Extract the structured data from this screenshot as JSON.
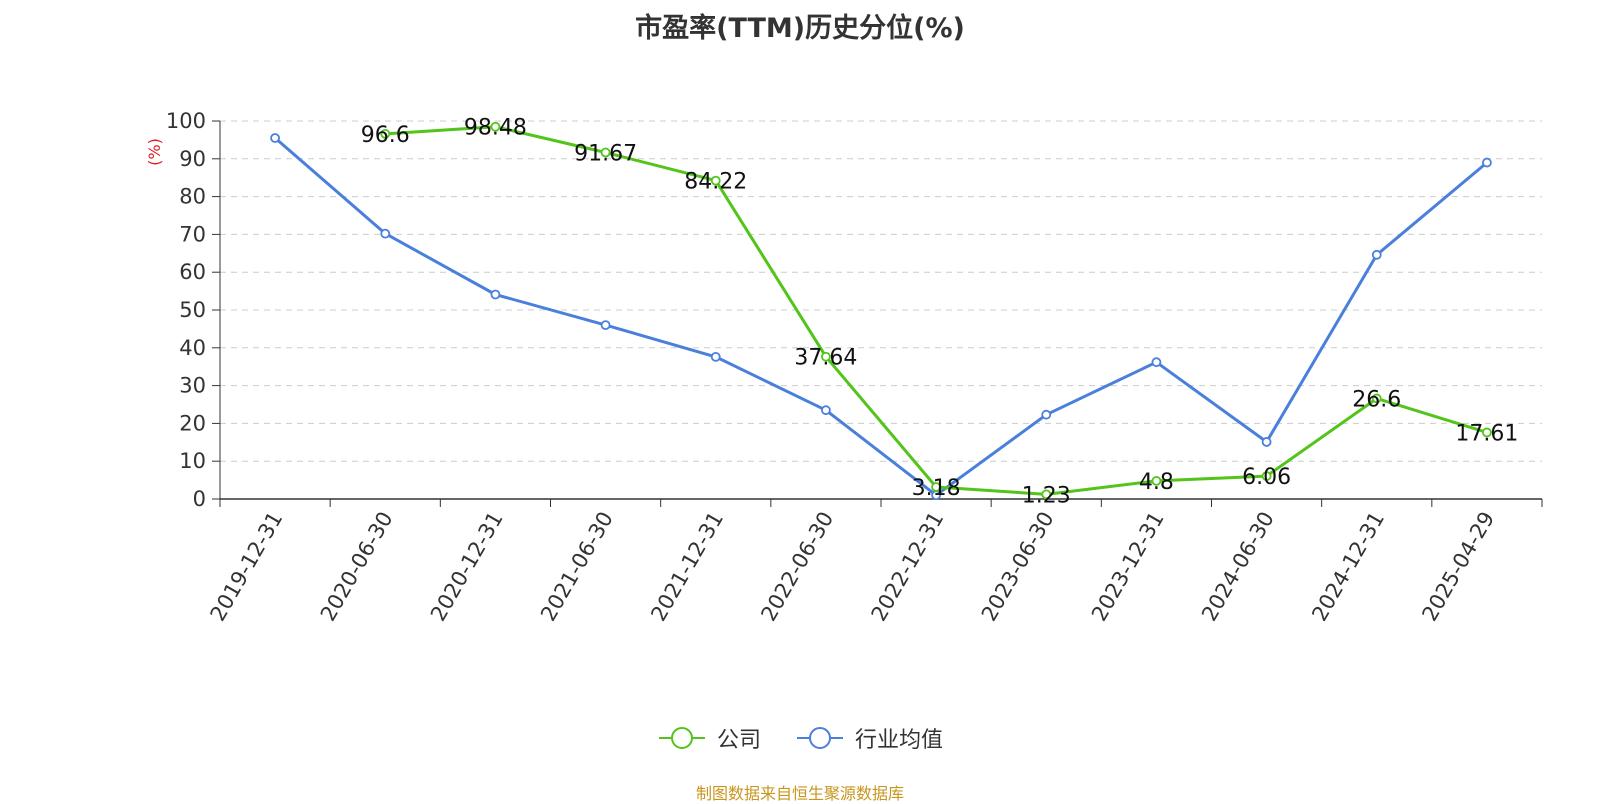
{
  "title": "市盈率(TTM)历史分位(%)",
  "source": "制图数据来自恒生聚源数据库",
  "chart_data": {
    "type": "line",
    "title": "市盈率(TTM)历史分位(%)",
    "ylabel": "(%)",
    "ylim": [
      0,
      100
    ],
    "yticks": [
      0,
      10,
      20,
      30,
      40,
      50,
      60,
      70,
      80,
      90,
      100
    ],
    "grid": true,
    "legend_position": "bottom-center",
    "categories": [
      "2019-12-31",
      "2020-06-30",
      "2020-12-31",
      "2021-06-30",
      "2021-12-31",
      "2022-06-30",
      "2022-12-31",
      "2023-06-30",
      "2023-12-31",
      "2024-06-30",
      "2024-12-31",
      "2025-04-29"
    ],
    "series": [
      {
        "name": "公司",
        "color": "#52c41a",
        "values": [
          null,
          96.6,
          98.48,
          91.67,
          84.22,
          37.64,
          3.18,
          1.23,
          4.8,
          6.06,
          26.6,
          17.61
        ],
        "show_labels": true
      },
      {
        "name": "行业均值",
        "color": "#4a7fdc",
        "values": [
          95.5,
          70.2,
          54.1,
          46.0,
          37.6,
          23.5,
          1.0,
          22.3,
          36.2,
          15.1,
          64.6,
          89.0
        ],
        "show_labels": false
      }
    ]
  }
}
